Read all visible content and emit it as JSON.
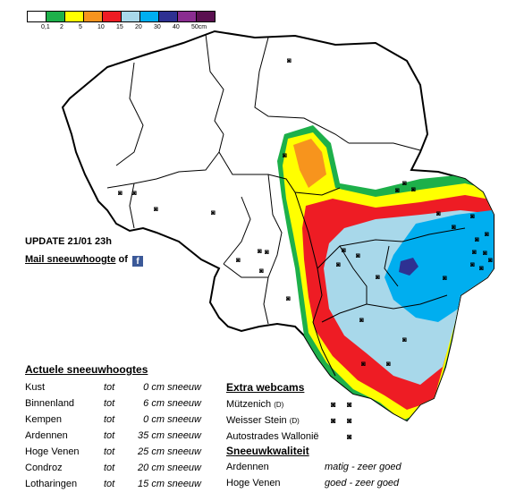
{
  "legend": {
    "colors": [
      "#ffffff",
      "#1db04a",
      "#ffff00",
      "#f7941d",
      "#ee1c24",
      "#a8d8ea",
      "#00aeef",
      "#2e3192",
      "#8a2d90",
      "#5a1050"
    ],
    "labels": [
      "0,1",
      "2",
      "5",
      "10",
      "15",
      "20",
      "30",
      "40",
      "50cm"
    ]
  },
  "update_text": "UPDATE 21/01 23h",
  "mail": {
    "link": "Mail sneeuwhoogte",
    "suffix": "of"
  },
  "facebook_icon": "facebook-icon",
  "actuele": {
    "title": "Actuele sneeuwhoogtes",
    "rows": [
      {
        "region": "Kust",
        "tot": "tot",
        "value": "0 cm",
        "unit": "sneeuw"
      },
      {
        "region": "Binnenland",
        "tot": "tot",
        "value": "6 cm",
        "unit": "sneeuw"
      },
      {
        "region": "Kempen",
        "tot": "tot",
        "value": "0 cm",
        "unit": "sneeuw"
      },
      {
        "region": "Ardennen",
        "tot": "tot",
        "value": "35 cm",
        "unit": "sneeuw"
      },
      {
        "region": "Hoge Venen",
        "tot": "tot",
        "value": "25 cm",
        "unit": "sneeuw"
      },
      {
        "region": "Condroz",
        "tot": "tot",
        "value": "20 cm",
        "unit": "sneeuw"
      },
      {
        "region": "Lotharingen",
        "tot": "tot",
        "value": "15 cm",
        "unit": "sneeuw"
      }
    ]
  },
  "webcams": {
    "title": "Extra webcams",
    "items": [
      {
        "name": "Mützenich",
        "suffix": "(D)"
      },
      {
        "name": "Weisser Stein",
        "suffix": "(D)"
      },
      {
        "name": "Autostrades Wallonië",
        "suffix": ""
      }
    ]
  },
  "kwaliteit": {
    "title": "Sneeuwkwaliteit",
    "rows": [
      {
        "region": "Ardennen",
        "quality": "matig - zeer goed"
      },
      {
        "region": "Hoge Venen",
        "quality": "goed - zeer goed"
      }
    ]
  },
  "camera_icon": "camera-icon"
}
